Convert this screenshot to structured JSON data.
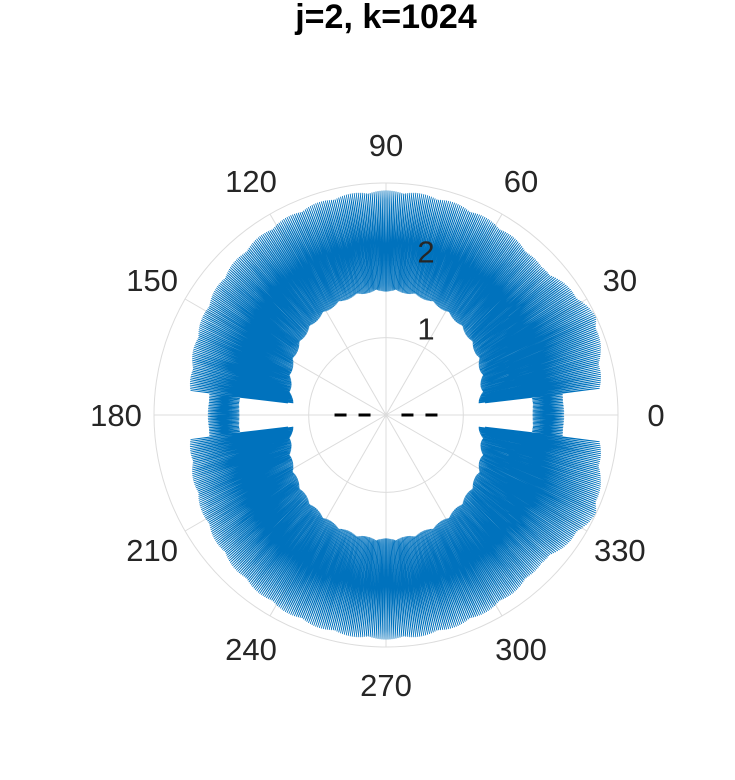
{
  "chart_data": {
    "type": "polar-line",
    "title": "j=2, k=1024",
    "theta_ticks_deg": [
      "0",
      "30",
      "60",
      "90",
      "120",
      "150",
      "180",
      "210",
      "240",
      "270",
      "300",
      "330"
    ],
    "r_ticks": [
      "1",
      "2"
    ],
    "r_range": [
      0,
      3
    ],
    "inner_hole_radius": 1.15,
    "grid": true,
    "series": [
      {
        "color": "#0072BD",
        "envelope": {
          "outer_radius_range": [
            2.5,
            2.9
          ],
          "inner_band_radius": 1.6,
          "oscillation_count": 64,
          "right_side_reach_angle_deg": 25,
          "right_side_max_radius": 3.0,
          "low_lobe_radius_at_0": 2.3,
          "low_lobe_radius_at_180": 2.3
        }
      }
    ],
    "reference_lines": [
      {
        "style": "dashed",
        "color": "#000000",
        "theta_deg": 0,
        "r": [
          0.2,
          0.8
        ]
      },
      {
        "style": "dashed",
        "color": "#000000",
        "theta_deg": 180,
        "r": [
          0.2,
          0.8
        ]
      }
    ]
  }
}
